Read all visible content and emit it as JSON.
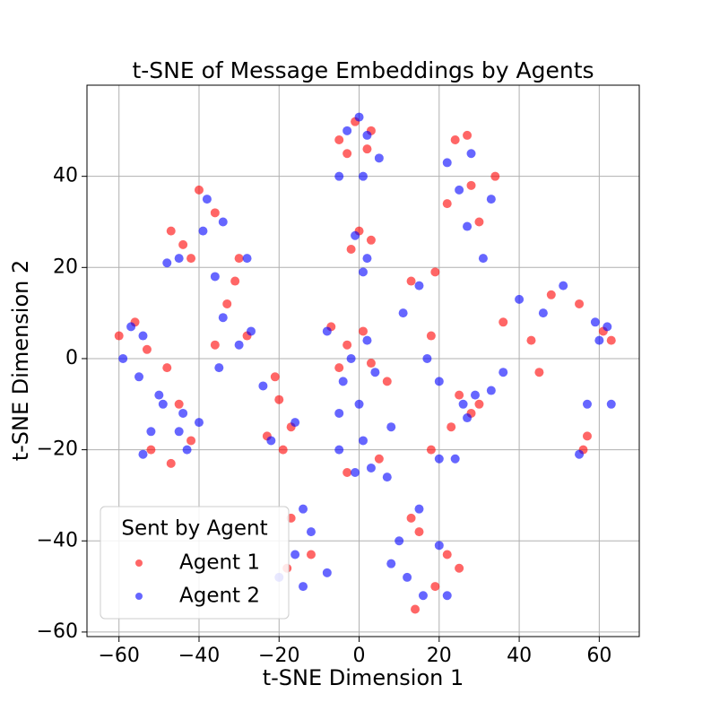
{
  "chart_data": {
    "type": "scatter",
    "title": "t-SNE of Message Embeddings by Agents",
    "x_label": "t-SNE Dimension 1",
    "y_label": "t-SNE Dimension 2",
    "xlim": [
      -68,
      70
    ],
    "ylim": [
      -61,
      60
    ],
    "xticks": [
      {
        "value": -60,
        "label": "−60"
      },
      {
        "value": -40,
        "label": "−40"
      },
      {
        "value": -20,
        "label": "−20"
      },
      0,
      20,
      40,
      60
    ],
    "yticks": [
      {
        "value": -60,
        "label": "−60"
      },
      {
        "value": -40,
        "label": "−40"
      },
      {
        "value": -20,
        "label": "−20"
      },
      0,
      20,
      40
    ],
    "grid": true,
    "legend_title": "Sent by Agent",
    "legend_position": "lower left",
    "series": [
      {
        "name": "Agent 1",
        "color": "#ff0000",
        "x": [
          -1,
          -5,
          2,
          3,
          -3,
          24,
          27,
          28,
          34,
          22,
          30,
          -47,
          -44,
          -40,
          -36,
          -42,
          0,
          -2,
          3,
          -30,
          -33,
          -28,
          -36,
          -31,
          -60,
          -56,
          -53,
          -48,
          -45,
          -52,
          -47,
          -42,
          -21,
          -20,
          -23,
          -19,
          -17,
          -7,
          -3,
          1,
          3,
          -5,
          7,
          13,
          19,
          18,
          25,
          28,
          30,
          23,
          36,
          43,
          48,
          55,
          61,
          63,
          45,
          -3,
          5,
          18,
          13,
          15,
          22,
          25,
          14,
          19,
          -17,
          -18,
          -12,
          57,
          56
        ],
        "y": [
          52,
          48,
          46,
          50,
          45,
          48,
          49,
          38,
          40,
          34,
          30,
          28,
          25,
          37,
          32,
          22,
          28,
          24,
          26,
          22,
          12,
          5,
          3,
          17,
          5,
          8,
          2,
          -2,
          -10,
          -20,
          -23,
          -18,
          -4,
          -9,
          -17,
          -20,
          -15,
          7,
          3,
          6,
          -1,
          -2,
          -5,
          17,
          19,
          5,
          -8,
          -12,
          -10,
          -15,
          8,
          4,
          14,
          12,
          6,
          4,
          -3,
          -25,
          -22,
          -20,
          -35,
          -38,
          -43,
          -46,
          -55,
          -50,
          -35,
          -46,
          -43,
          -17,
          -20
        ]
      },
      {
        "name": "Agent 2",
        "color": "#0000ff",
        "x": [
          0,
          -3,
          2,
          -5,
          5,
          1,
          22,
          28,
          25,
          33,
          27,
          31,
          -45,
          -38,
          -34,
          -39,
          -48,
          -1,
          2,
          1,
          -28,
          -36,
          -34,
          -30,
          -27,
          -35,
          -57,
          -59,
          -54,
          -55,
          -50,
          -49,
          -44,
          -40,
          -52,
          -45,
          -43,
          -54,
          -24,
          -22,
          -16,
          -8,
          -2,
          2,
          4,
          -4,
          0,
          -5,
          8,
          15,
          11,
          17,
          20,
          26,
          29,
          27,
          24,
          20,
          33,
          36,
          40,
          51,
          46,
          60,
          62,
          59,
          63,
          57,
          55,
          -5,
          -1,
          3,
          7,
          1,
          15,
          10,
          20,
          12,
          16,
          8,
          22,
          -14,
          -16,
          -14,
          -12,
          -8,
          -20
        ],
        "y": [
          53,
          50,
          49,
          40,
          44,
          40,
          43,
          45,
          37,
          35,
          29,
          22,
          22,
          35,
          30,
          28,
          21,
          27,
          22,
          19,
          22,
          18,
          9,
          3,
          6,
          -2,
          7,
          0,
          5,
          -4,
          -8,
          -10,
          -12,
          -14,
          -16,
          -16,
          -20,
          -21,
          -6,
          -18,
          -14,
          6,
          0,
          4,
          -3,
          -5,
          -10,
          -12,
          -15,
          16,
          10,
          0,
          -5,
          -10,
          -8,
          -13,
          -22,
          -22,
          -7,
          -3,
          13,
          16,
          10,
          4,
          7,
          8,
          -10,
          -10,
          -21,
          -20,
          -25,
          -24,
          -26,
          -18,
          -33,
          -40,
          -41,
          -48,
          -52,
          -45,
          -52,
          -33,
          -43,
          -50,
          -38,
          -47,
          -48
        ]
      }
    ]
  }
}
